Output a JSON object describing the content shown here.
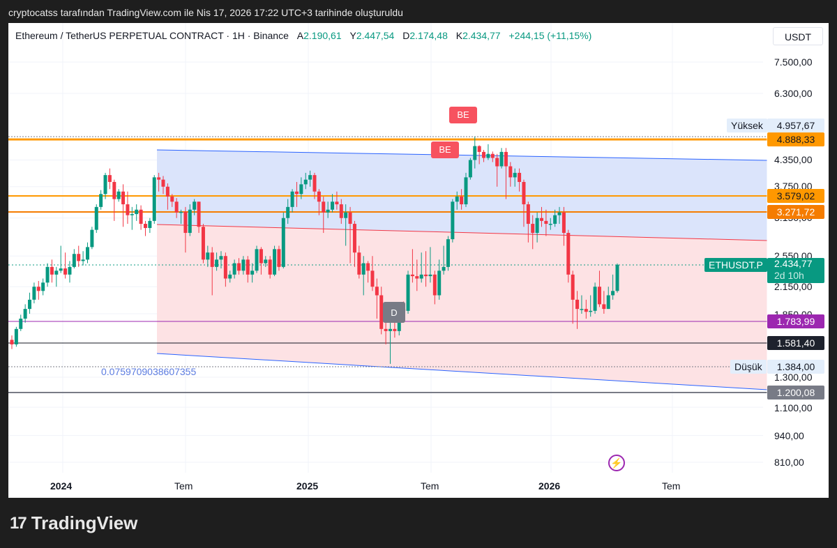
{
  "caption": "cryptocatss tarafından TradingView.com ile Nis 17, 2026 17:22 UTC+3 tarihinde oluşturuldu",
  "legend": {
    "symbol": "Ethereum / TetherUS PERPETUAL CONTRACT · 1H · Binance",
    "open_label": "A",
    "open": "2.190,61",
    "high_label": "Y",
    "high": "2.447,54",
    "low_label": "D",
    "low": "2.174,48",
    "close_label": "K",
    "close": "2.434,77",
    "change": "+244,15 (+11,15%)"
  },
  "currency": "USDT",
  "colors": {
    "up": "#089981",
    "down": "#f23645",
    "orange": "#ff9800",
    "orange_dark": "#f57c00",
    "purple": "#9c27b0",
    "channel_blue": "#dbe4fb",
    "channel_red": "#fde2e4",
    "blue_line": "#2962ff"
  },
  "yaxis": {
    "ticks": [
      "7.500,00",
      "6.300,00",
      "4.350,00",
      "3.750,00",
      "3.150,00",
      "2.550,00",
      "2.150,00",
      "1.850,00",
      "1.300,00",
      "1.100,00",
      "940,00",
      "810,00"
    ],
    "tags": {
      "high_label": "Yüksek",
      "high_value": "4.957,67",
      "level1": "4.888,33",
      "level2": "3.579,02",
      "level3": "3.271,72",
      "symbol_label": "ETHUSDT.P",
      "last": "2.434,77",
      "countdown": "2d 10h",
      "level4": "1.783,99",
      "level5": "1.581,40",
      "low_label": "Düşük",
      "low_value": "1.384,00",
      "level6": "1.200,08"
    }
  },
  "xaxis": {
    "labels": [
      "2024",
      "Tem",
      "2025",
      "Tem",
      "2026",
      "Tem"
    ]
  },
  "markers": {
    "be1": "BE",
    "be2": "BE",
    "d": "D"
  },
  "fib_text": "0.0759709038607355",
  "brand": "TradingView",
  "chart_data": {
    "type": "candlestick",
    "title": "Ethereum / TetherUS PERPETUAL CONTRACT · 1H · Binance",
    "xlabel": "",
    "ylabel": "USDT",
    "y_scale": "log",
    "ylim": [
      760,
      8200
    ],
    "x_ticks": [
      "2024",
      "Tem",
      "2025",
      "Tem",
      "2026",
      "Tem"
    ],
    "horizontal_levels": [
      4888.33,
      3579.02,
      3271.72,
      1783.99,
      1581.4,
      1200.08
    ],
    "high": 4957.67,
    "low": 1384.0,
    "last": 2434.77,
    "candles": [
      [
        1600,
        1560,
        1640,
        1520
      ],
      [
        1560,
        1700,
        1720,
        1540
      ],
      [
        1700,
        1800,
        1840,
        1680
      ],
      [
        1800,
        1900,
        1950,
        1760
      ],
      [
        1900,
        2000,
        2080,
        1850
      ],
      [
        2000,
        2150,
        2200,
        1960
      ],
      [
        2150,
        2100,
        2220,
        2000
      ],
      [
        2100,
        2200,
        2250,
        2050
      ],
      [
        2200,
        2400,
        2450,
        2150
      ],
      [
        2400,
        2300,
        2500,
        2200
      ],
      [
        2300,
        2350,
        2400,
        2150
      ],
      [
        2350,
        2380,
        2700,
        2320
      ],
      [
        2380,
        2300,
        2600,
        2250
      ],
      [
        2300,
        2400,
        2480,
        2200
      ],
      [
        2400,
        2580,
        2650,
        2380
      ],
      [
        2580,
        2480,
        2700,
        2400
      ],
      [
        2480,
        2500,
        2620,
        2420
      ],
      [
        2500,
        2680,
        2750,
        2450
      ],
      [
        2680,
        2950,
        3000,
        2650
      ],
      [
        2950,
        3350,
        3400,
        2900
      ],
      [
        3350,
        3600,
        3680,
        3300
      ],
      [
        3600,
        4000,
        4050,
        3500
      ],
      [
        4000,
        3850,
        4150,
        3700
      ],
      [
        3850,
        3500,
        3900,
        3100
      ],
      [
        3500,
        3650,
        3700,
        3450
      ],
      [
        3650,
        3400,
        3800,
        3000
      ],
      [
        3400,
        3200,
        3650,
        3050
      ],
      [
        3200,
        3220,
        3350,
        2950
      ],
      [
        3220,
        3300,
        3400,
        3100
      ],
      [
        3300,
        3050,
        3380,
        2950
      ],
      [
        3050,
        2980,
        3100,
        2850
      ],
      [
        2980,
        3100,
        3150,
        2900
      ],
      [
        3100,
        3950,
        4000,
        3050
      ],
      [
        3950,
        3900,
        4050,
        3650
      ],
      [
        3900,
        3750,
        3980,
        3600
      ],
      [
        3750,
        3550,
        3820,
        3300
      ],
      [
        3550,
        3450,
        3600,
        3350
      ],
      [
        3450,
        3250,
        3520,
        3150
      ],
      [
        3250,
        3260,
        3300,
        3050
      ],
      [
        3260,
        2900,
        3350,
        2600
      ],
      [
        2900,
        3300,
        3400,
        2850
      ],
      [
        3300,
        3450,
        3500,
        3200
      ],
      [
        3450,
        3000,
        3450,
        2900
      ],
      [
        3000,
        2500,
        3050,
        2450
      ],
      [
        2500,
        2600,
        2700,
        2400
      ],
      [
        2600,
        2400,
        2680,
        2050
      ],
      [
        2400,
        2500,
        2600,
        2350
      ],
      [
        2500,
        2550,
        2620,
        2380
      ],
      [
        2550,
        2250,
        2600,
        2150
      ],
      [
        2250,
        2300,
        2350,
        2200
      ],
      [
        2300,
        2450,
        2500,
        2250
      ],
      [
        2450,
        2350,
        2520,
        2300
      ],
      [
        2350,
        2500,
        2550,
        2300
      ],
      [
        2500,
        2300,
        2550,
        2200
      ],
      [
        2300,
        2350,
        2450,
        2200
      ],
      [
        2350,
        2650,
        2700,
        2320
      ],
      [
        2650,
        2450,
        2680,
        2300
      ],
      [
        2450,
        2500,
        2550,
        2400
      ],
      [
        2500,
        2300,
        2550,
        2250
      ],
      [
        2300,
        2650,
        2700,
        2280
      ],
      [
        2650,
        2400,
        2700,
        2350
      ],
      [
        2400,
        3150,
        3250,
        2380
      ],
      [
        3150,
        3350,
        3500,
        3050
      ],
      [
        3350,
        3650,
        3700,
        3250
      ],
      [
        3650,
        3600,
        3850,
        3350
      ],
      [
        3600,
        3800,
        3950,
        3500
      ],
      [
        3800,
        3900,
        4050,
        3700
      ],
      [
        3900,
        4000,
        4100,
        3750
      ],
      [
        4000,
        3650,
        4050,
        3500
      ],
      [
        3650,
        3450,
        3700,
        3200
      ],
      [
        3450,
        3250,
        3550,
        2900
      ],
      [
        3250,
        3300,
        3450,
        3150
      ],
      [
        3300,
        3450,
        3600,
        3250
      ],
      [
        3450,
        3400,
        3650,
        3300
      ],
      [
        3400,
        3150,
        3500,
        3050
      ],
      [
        3150,
        3250,
        3400,
        2700
      ],
      [
        3250,
        3050,
        3350,
        2450
      ],
      [
        3050,
        2600,
        3100,
        2400
      ],
      [
        2600,
        2300,
        2700,
        2250
      ],
      [
        2300,
        2450,
        2550,
        2050
      ],
      [
        2450,
        2350,
        2480,
        2200
      ],
      [
        2350,
        2150,
        2550,
        2100
      ],
      [
        2150,
        2050,
        2250,
        1800
      ],
      [
        2050,
        1700,
        2150,
        1650
      ],
      [
        1700,
        1680,
        1850,
        1560
      ],
      [
        1680,
        1700,
        1800,
        1400
      ],
      [
        1700,
        1680,
        1800,
        1620
      ],
      [
        1680,
        1900,
        1950,
        1640
      ],
      [
        1900,
        1880,
        1980,
        1800
      ],
      [
        1880,
        2300,
        2350,
        1850
      ],
      [
        2300,
        2280,
        2650,
        2200
      ],
      [
        2280,
        2250,
        2500,
        2100
      ],
      [
        2250,
        2300,
        2600,
        2200
      ],
      [
        2300,
        2280,
        2620,
        2150
      ],
      [
        2280,
        2300,
        2680,
        2200
      ],
      [
        2300,
        2050,
        2350,
        1950
      ],
      [
        2050,
        2350,
        2500,
        2000
      ],
      [
        2350,
        2400,
        2700,
        2300
      ],
      [
        2400,
        2800,
        2850,
        2350
      ],
      [
        2800,
        3450,
        3500,
        2750
      ],
      [
        3450,
        3550,
        3650,
        3300
      ],
      [
        3550,
        3400,
        3700,
        3300
      ],
      [
        3400,
        3950,
        4050,
        3350
      ],
      [
        3950,
        4350,
        4400,
        3900
      ],
      [
        4350,
        4700,
        4950,
        4150
      ],
      [
        4700,
        4550,
        4720,
        4250
      ],
      [
        4550,
        4400,
        4600,
        4300
      ],
      [
        4400,
        4500,
        4750,
        4350
      ],
      [
        4500,
        4400,
        4560,
        4300
      ],
      [
        4400,
        4200,
        4500,
        3750
      ],
      [
        4200,
        4550,
        4650,
        4150
      ],
      [
        4550,
        4200,
        4650,
        3500
      ],
      [
        4200,
        3950,
        4300,
        3750
      ],
      [
        3950,
        4050,
        4150,
        3750
      ],
      [
        4050,
        3850,
        4150,
        3650
      ],
      [
        3850,
        3400,
        3900,
        3000
      ],
      [
        3400,
        3050,
        3450,
        2750
      ],
      [
        3050,
        2900,
        3200,
        2650
      ],
      [
        2900,
        3150,
        3250,
        2750
      ],
      [
        3150,
        3100,
        3350,
        3000
      ],
      [
        3100,
        3050,
        3300,
        2850
      ],
      [
        3050,
        3050,
        3150,
        2950
      ],
      [
        3050,
        3200,
        3300,
        3000
      ],
      [
        3200,
        3250,
        3350,
        3050
      ],
      [
        3250,
        2900,
        3350,
        2700
      ],
      [
        2900,
        2300,
        2950,
        2200
      ],
      [
        2300,
        2000,
        2350,
        1750
      ],
      [
        2000,
        1900,
        2100,
        1700
      ],
      [
        1900,
        1900,
        2050,
        1850
      ],
      [
        1900,
        1870,
        2000,
        1800
      ],
      [
        1870,
        1880,
        2050,
        1820
      ],
      [
        1880,
        2150,
        2200,
        1850
      ],
      [
        2150,
        1950,
        2350,
        1920
      ],
      [
        1950,
        1900,
        2100,
        1850
      ],
      [
        1900,
        2050,
        2150,
        1900
      ],
      [
        2050,
        2100,
        2300,
        2000
      ],
      [
        2100,
        2430,
        2447,
        2080
      ]
    ]
  }
}
